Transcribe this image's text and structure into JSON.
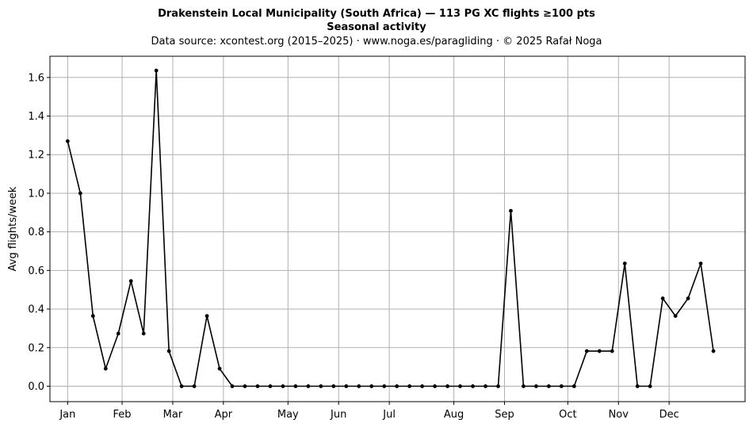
{
  "chart_data": {
    "type": "line",
    "title": "Drakenstein Local Municipality (South Africa)  —  113 PG XC flights ≥100 pts",
    "subtitle": "Seasonal activity",
    "source": "Data source: xcontest.org (2015–2025)  ·  www.noga.es/paragliding  ·  © 2025 Rafał Noga",
    "xlabel": "",
    "ylabel": "Avg flights/week",
    "ylim": [
      -0.08,
      1.71
    ],
    "xlim": [
      -1.4,
      53.5
    ],
    "grid": true,
    "line_color": "#000000",
    "grid_color": "#b0b0b0",
    "x_ticks": [
      {
        "label": "Jan",
        "week": 0
      },
      {
        "label": "Feb",
        "week": 4.3
      },
      {
        "label": "Mar",
        "week": 8.3
      },
      {
        "label": "Apr",
        "week": 12.3
      },
      {
        "label": "May",
        "week": 17.4
      },
      {
        "label": "Jun",
        "week": 21.4
      },
      {
        "label": "Jul",
        "week": 25.4
      },
      {
        "label": "Aug",
        "week": 30.5
      },
      {
        "label": "Sep",
        "week": 34.5
      },
      {
        "label": "Oct",
        "week": 39.5
      },
      {
        "label": "Nov",
        "week": 43.5
      },
      {
        "label": "Dec",
        "week": 47.5
      }
    ],
    "y_ticks": [
      0.0,
      0.2,
      0.4,
      0.6,
      0.8,
      1.0,
      1.2,
      1.4,
      1.6
    ],
    "y_tick_labels": [
      "0.0",
      "0.2",
      "0.4",
      "0.6",
      "0.8",
      "1.0",
      "1.2",
      "1.4",
      "1.6"
    ],
    "x": [
      0,
      1,
      2,
      3,
      4,
      5,
      6,
      7,
      8,
      9,
      10,
      11,
      12,
      13,
      14,
      15,
      16,
      17,
      18,
      19,
      20,
      21,
      22,
      23,
      24,
      25,
      26,
      27,
      28,
      29,
      30,
      31,
      32,
      33,
      34,
      35,
      36,
      37,
      38,
      39,
      40,
      41,
      42,
      43,
      44,
      45,
      46,
      47,
      48,
      49,
      50,
      51
    ],
    "values": [
      1.27,
      1.0,
      0.364,
      0.091,
      0.273,
      0.545,
      0.273,
      1.636,
      0.182,
      0.0,
      0.0,
      0.364,
      0.091,
      0.0,
      0.0,
      0.0,
      0.0,
      0.0,
      0.0,
      0.0,
      0.0,
      0.0,
      0.0,
      0.0,
      0.0,
      0.0,
      0.0,
      0.0,
      0.0,
      0.0,
      0.0,
      0.0,
      0.0,
      0.0,
      0.0,
      0.909,
      0.0,
      0.0,
      0.0,
      0.0,
      0.0,
      0.182,
      0.182,
      0.182,
      0.636,
      0.0,
      0.0,
      0.455,
      0.364,
      0.455,
      0.636,
      0.182
    ]
  }
}
